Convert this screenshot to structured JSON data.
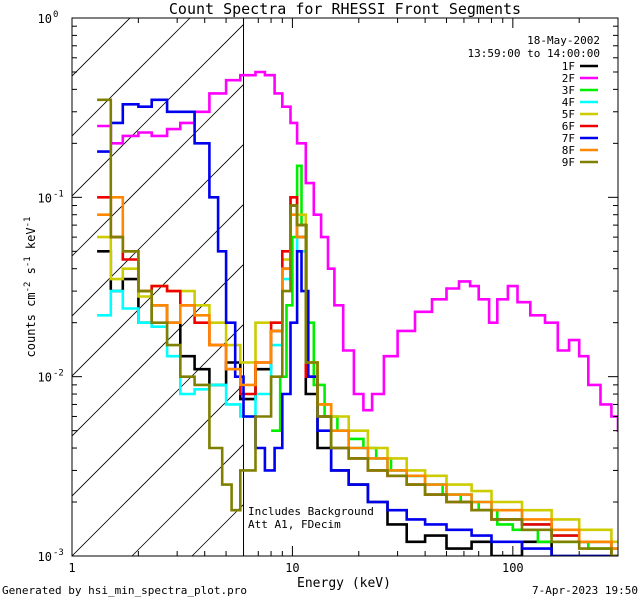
{
  "chart_data": {
    "type": "line",
    "title": "Count Spectra for RHESSI Front Segments",
    "xlabel": "Energy (keV)",
    "ylabel": "counts cm^-2 s^-1 keV^-1",
    "ylabel_parts": {
      "a": "counts cm",
      "b": "-2",
      "c": " s",
      "d": "-1",
      "e": " keV",
      "f": "-1"
    },
    "xscale": "log",
    "yscale": "log",
    "xlim": [
      1,
      300
    ],
    "ylim": [
      0.001,
      1
    ],
    "x_ticks": [
      {
        "value": 1,
        "label": "1"
      },
      {
        "value": 10,
        "label": "10"
      },
      {
        "value": 100,
        "label": "100"
      }
    ],
    "y_ticks": [
      {
        "value": 1,
        "base": "10",
        "exp": "0"
      },
      {
        "value": 0.1,
        "base": "10",
        "exp": "-1"
      },
      {
        "value": 0.01,
        "base": "10",
        "exp": "-2"
      },
      {
        "value": 0.001,
        "base": "10",
        "exp": "-3"
      }
    ],
    "date": "18-May-2002",
    "time_range": "13:59:00 to 14:00:00",
    "hatched_region": {
      "x_max_keV": 6
    },
    "annotation": [
      "Includes Background",
      "Att A1, FDecim"
    ],
    "series": [
      {
        "name": "1F",
        "color": "#000000",
        "values": [
          [
            1.3,
            0.05
          ],
          [
            1.5,
            0.03
          ],
          [
            1.7,
            0.035
          ],
          [
            2.0,
            0.02
          ],
          [
            2.3,
            0.025
          ],
          [
            2.7,
            0.02
          ],
          [
            3.1,
            0.013
          ],
          [
            3.6,
            0.011
          ],
          [
            4.2,
            0.009
          ],
          [
            5.0,
            0.012
          ],
          [
            5.8,
            0.0075
          ],
          [
            6.8,
            0.011
          ],
          [
            8.0,
            0.018
          ],
          [
            9.0,
            0.04
          ],
          [
            9.8,
            0.09
          ],
          [
            10.5,
            0.06
          ],
          [
            11.5,
            0.008
          ],
          [
            13,
            0.004
          ],
          [
            15,
            0.003
          ],
          [
            18,
            0.0025
          ],
          [
            22,
            0.002
          ],
          [
            27,
            0.0015
          ],
          [
            33,
            0.0012
          ],
          [
            40,
            0.0013
          ],
          [
            50,
            0.0011
          ],
          [
            65,
            0.0012
          ],
          [
            80,
            0.001
          ],
          [
            110,
            0.0012
          ],
          [
            150,
            0.001
          ],
          [
            200,
            0.001
          ],
          [
            280,
            0.001
          ]
        ]
      },
      {
        "name": "2F",
        "color": "#ff00ff",
        "values": [
          [
            1.3,
            0.25
          ],
          [
            1.5,
            0.2
          ],
          [
            1.7,
            0.22
          ],
          [
            2.0,
            0.23
          ],
          [
            2.3,
            0.22
          ],
          [
            2.7,
            0.24
          ],
          [
            3.1,
            0.26
          ],
          [
            3.6,
            0.3
          ],
          [
            4.2,
            0.38
          ],
          [
            5.0,
            0.45
          ],
          [
            5.8,
            0.48
          ],
          [
            6.8,
            0.5
          ],
          [
            7.5,
            0.48
          ],
          [
            8.3,
            0.38
          ],
          [
            9.0,
            0.32
          ],
          [
            9.8,
            0.26
          ],
          [
            10.5,
            0.2
          ],
          [
            11.5,
            0.12
          ],
          [
            12.5,
            0.08
          ],
          [
            13.5,
            0.06
          ],
          [
            14.5,
            0.04
          ],
          [
            15.5,
            0.025
          ],
          [
            17,
            0.014
          ],
          [
            19,
            0.008
          ],
          [
            21,
            0.0065
          ],
          [
            23,
            0.008
          ],
          [
            26,
            0.013
          ],
          [
            30,
            0.018
          ],
          [
            36,
            0.023
          ],
          [
            43,
            0.027
          ],
          [
            50,
            0.031
          ],
          [
            57,
            0.034
          ],
          [
            64,
            0.032
          ],
          [
            70,
            0.027
          ],
          [
            78,
            0.02
          ],
          [
            85,
            0.027
          ],
          [
            95,
            0.032
          ],
          [
            105,
            0.026
          ],
          [
            120,
            0.022
          ],
          [
            140,
            0.02
          ],
          [
            160,
            0.014
          ],
          [
            180,
            0.016
          ],
          [
            200,
            0.013
          ],
          [
            220,
            0.009
          ],
          [
            250,
            0.007
          ],
          [
            280,
            0.006
          ],
          [
            300,
            0.005
          ]
        ]
      },
      {
        "name": "3F",
        "color": "#00ee00",
        "values": [
          [
            8.0,
            0.005
          ],
          [
            8.8,
            0.01
          ],
          [
            9.4,
            0.025
          ],
          [
            10.0,
            0.06
          ],
          [
            10.5,
            0.15
          ],
          [
            11.0,
            0.07
          ],
          [
            11.6,
            0.02
          ],
          [
            12.5,
            0.009
          ],
          [
            14,
            0.006
          ],
          [
            16,
            0.005
          ],
          [
            18,
            0.0045
          ],
          [
            21,
            0.004
          ],
          [
            24,
            0.0035
          ],
          [
            28,
            0.003
          ],
          [
            33,
            0.0028
          ],
          [
            40,
            0.0025
          ],
          [
            48,
            0.0022
          ],
          [
            58,
            0.002
          ],
          [
            70,
            0.0018
          ],
          [
            85,
            0.0015
          ],
          [
            100,
            0.0014
          ],
          [
            130,
            0.0012
          ],
          [
            170,
            0.0012
          ],
          [
            220,
            0.0011
          ],
          [
            280,
            0.001
          ]
        ]
      },
      {
        "name": "4F",
        "color": "#00ffff",
        "values": [
          [
            1.3,
            0.022
          ],
          [
            1.5,
            0.03
          ],
          [
            1.7,
            0.024
          ],
          [
            2.0,
            0.02
          ],
          [
            2.3,
            0.019
          ],
          [
            2.7,
            0.013
          ],
          [
            3.1,
            0.008
          ],
          [
            3.6,
            0.0085
          ],
          [
            4.2,
            0.009
          ],
          [
            5.0,
            0.007
          ],
          [
            5.8,
            0.006
          ],
          [
            6.8,
            0.008
          ],
          [
            8.0,
            0.015
          ],
          [
            9.0,
            0.035
          ],
          [
            9.8,
            0.08
          ],
          [
            10.5,
            0.05
          ],
          [
            11.5,
            0.01
          ],
          [
            13,
            0.006
          ],
          [
            15,
            0.005
          ],
          [
            18,
            0.004
          ],
          [
            22,
            0.0035
          ],
          [
            27,
            0.003
          ],
          [
            33,
            0.0028
          ],
          [
            40,
            0.0025
          ],
          [
            50,
            0.0022
          ],
          [
            65,
            0.002
          ],
          [
            80,
            0.0018
          ],
          [
            110,
            0.0015
          ],
          [
            150,
            0.0013
          ],
          [
            200,
            0.0012
          ],
          [
            280,
            0.0011
          ]
        ]
      },
      {
        "name": "5F",
        "color": "#cccc00",
        "values": [
          [
            1.3,
            0.06
          ],
          [
            1.5,
            0.035
          ],
          [
            1.7,
            0.04
          ],
          [
            2.0,
            0.028
          ],
          [
            2.3,
            0.032
          ],
          [
            2.7,
            0.03
          ],
          [
            3.1,
            0.03
          ],
          [
            3.6,
            0.025
          ],
          [
            4.2,
            0.02
          ],
          [
            5.0,
            0.015
          ],
          [
            5.8,
            0.012
          ],
          [
            6.8,
            0.02
          ],
          [
            8.0,
            0.02
          ],
          [
            9.0,
            0.045
          ],
          [
            9.8,
            0.1
          ],
          [
            10.5,
            0.08
          ],
          [
            11.5,
            0.012
          ],
          [
            13,
            0.007
          ],
          [
            15,
            0.006
          ],
          [
            18,
            0.005
          ],
          [
            22,
            0.004
          ],
          [
            27,
            0.0035
          ],
          [
            33,
            0.003
          ],
          [
            40,
            0.0028
          ],
          [
            50,
            0.0025
          ],
          [
            65,
            0.0023
          ],
          [
            80,
            0.002
          ],
          [
            110,
            0.0018
          ],
          [
            150,
            0.0016
          ],
          [
            200,
            0.0014
          ],
          [
            280,
            0.0012
          ]
        ]
      },
      {
        "name": "6F",
        "color": "#ee0000",
        "values": [
          [
            1.3,
            0.1
          ],
          [
            1.5,
            0.06
          ],
          [
            1.7,
            0.045
          ],
          [
            2.0,
            0.03
          ],
          [
            2.3,
            0.032
          ],
          [
            2.7,
            0.03
          ],
          [
            3.1,
            0.025
          ],
          [
            3.6,
            0.02
          ],
          [
            4.2,
            0.015
          ],
          [
            5.0,
            0.011
          ],
          [
            5.8,
            0.008
          ],
          [
            6.8,
            0.012
          ],
          [
            8.0,
            0.02
          ],
          [
            9.0,
            0.05
          ],
          [
            9.8,
            0.1
          ],
          [
            10.5,
            0.07
          ],
          [
            11.5,
            0.01
          ],
          [
            13,
            0.006
          ],
          [
            15,
            0.004
          ],
          [
            18,
            0.0035
          ],
          [
            22,
            0.003
          ],
          [
            27,
            0.0028
          ],
          [
            33,
            0.0025
          ],
          [
            40,
            0.0022
          ],
          [
            50,
            0.002
          ],
          [
            65,
            0.0018
          ],
          [
            80,
            0.0016
          ],
          [
            110,
            0.0015
          ],
          [
            150,
            0.0013
          ],
          [
            200,
            0.0012
          ],
          [
            280,
            0.001
          ]
        ]
      },
      {
        "name": "7F",
        "color": "#0000ee",
        "values": [
          [
            1.3,
            0.18
          ],
          [
            1.5,
            0.26
          ],
          [
            1.7,
            0.33
          ],
          [
            2.0,
            0.32
          ],
          [
            2.3,
            0.35
          ],
          [
            2.7,
            0.3
          ],
          [
            3.1,
            0.3
          ],
          [
            3.6,
            0.2
          ],
          [
            4.2,
            0.1
          ],
          [
            4.6,
            0.05
          ],
          [
            5.0,
            0.02
          ],
          [
            5.5,
            0.01
          ],
          [
            6.0,
            0.006
          ],
          [
            6.8,
            0.004
          ],
          [
            7.5,
            0.003
          ],
          [
            8.3,
            0.004
          ],
          [
            9.0,
            0.008
          ],
          [
            9.8,
            0.02
          ],
          [
            10.5,
            0.05
          ],
          [
            11.0,
            0.03
          ],
          [
            11.8,
            0.01
          ],
          [
            13,
            0.005
          ],
          [
            15,
            0.003
          ],
          [
            18,
            0.0025
          ],
          [
            22,
            0.002
          ],
          [
            27,
            0.0018
          ],
          [
            33,
            0.0016
          ],
          [
            40,
            0.0015
          ],
          [
            50,
            0.0014
          ],
          [
            65,
            0.0013
          ],
          [
            80,
            0.0012
          ],
          [
            110,
            0.0011
          ],
          [
            150,
            0.001
          ],
          [
            200,
            0.001
          ],
          [
            280,
            0.001
          ]
        ]
      },
      {
        "name": "8F",
        "color": "#ff8800",
        "values": [
          [
            1.3,
            0.08
          ],
          [
            1.5,
            0.1
          ],
          [
            1.7,
            0.05
          ],
          [
            2.0,
            0.03
          ],
          [
            2.3,
            0.025
          ],
          [
            2.7,
            0.02
          ],
          [
            3.1,
            0.025
          ],
          [
            3.6,
            0.022
          ],
          [
            4.2,
            0.015
          ],
          [
            5.0,
            0.011
          ],
          [
            5.8,
            0.009
          ],
          [
            6.8,
            0.012
          ],
          [
            8.0,
            0.018
          ],
          [
            9.0,
            0.04
          ],
          [
            9.8,
            0.08
          ],
          [
            10.5,
            0.06
          ],
          [
            11.5,
            0.012
          ],
          [
            13,
            0.007
          ],
          [
            15,
            0.005
          ],
          [
            18,
            0.004
          ],
          [
            22,
            0.0035
          ],
          [
            27,
            0.003
          ],
          [
            33,
            0.0028
          ],
          [
            40,
            0.0025
          ],
          [
            50,
            0.0022
          ],
          [
            65,
            0.002
          ],
          [
            80,
            0.0018
          ],
          [
            110,
            0.0016
          ],
          [
            150,
            0.0014
          ],
          [
            200,
            0.0012
          ],
          [
            280,
            0.0011
          ]
        ]
      },
      {
        "name": "9F",
        "color": "#808000",
        "values": [
          [
            1.3,
            0.35
          ],
          [
            1.5,
            0.06
          ],
          [
            1.7,
            0.05
          ],
          [
            2.0,
            0.03
          ],
          [
            2.3,
            0.02
          ],
          [
            2.7,
            0.015
          ],
          [
            3.1,
            0.01
          ],
          [
            3.6,
            0.009
          ],
          [
            4.2,
            0.004
          ],
          [
            4.8,
            0.0025
          ],
          [
            5.3,
            0.0018
          ],
          [
            5.8,
            0.003
          ],
          [
            6.8,
            0.006
          ],
          [
            8.0,
            0.01
          ],
          [
            9.0,
            0.03
          ],
          [
            9.8,
            0.09
          ],
          [
            10.5,
            0.07
          ],
          [
            11.5,
            0.012
          ],
          [
            13,
            0.006
          ],
          [
            15,
            0.004
          ],
          [
            18,
            0.0035
          ],
          [
            22,
            0.003
          ],
          [
            27,
            0.0028
          ],
          [
            33,
            0.0025
          ],
          [
            40,
            0.0022
          ],
          [
            50,
            0.002
          ],
          [
            65,
            0.0018
          ],
          [
            80,
            0.0016
          ],
          [
            110,
            0.0014
          ],
          [
            150,
            0.0012
          ],
          [
            200,
            0.0011
          ],
          [
            280,
            0.001
          ]
        ]
      }
    ]
  },
  "footer": {
    "left": "Generated by hsi_min_spectra_plot.pro",
    "right": "7-Apr-2023 19:50"
  }
}
